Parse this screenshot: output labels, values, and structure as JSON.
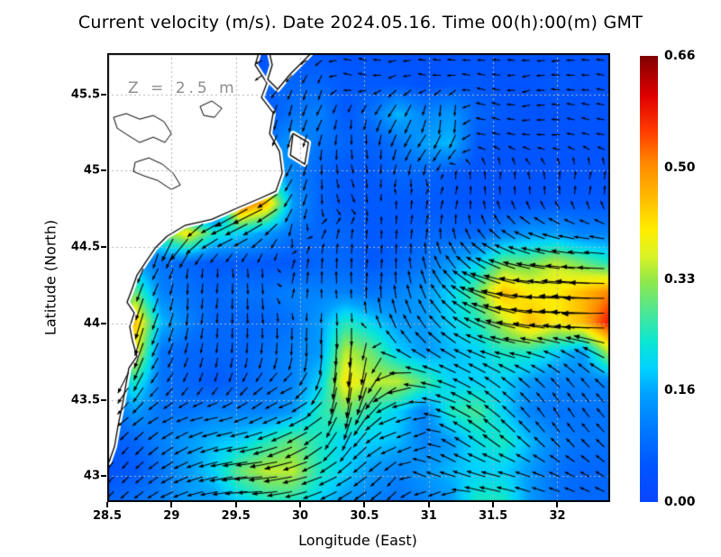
{
  "title": "Current velocity (m/s). Date 2024.05.16. Time 00(h):00(m) GMT",
  "annotation": "Z = 2.5 m",
  "axes": {
    "xlabel": "Longitude (East)",
    "ylabel": "Latitude (North)",
    "x_ticks": [
      28.5,
      29,
      29.5,
      30,
      30.5,
      31,
      31.5,
      32
    ],
    "x_tick_labels": [
      "28.5",
      "29",
      "29.5",
      "30",
      "30.5",
      "31",
      "31.5",
      "32"
    ],
    "y_ticks": [
      45.5,
      45,
      44.5,
      44,
      43.5,
      43
    ],
    "y_tick_labels": [
      "45.5",
      "45",
      "44.5",
      "44",
      "43.5",
      "43"
    ]
  },
  "colorbar": {
    "tick_labels": [
      "0.66",
      "0.50",
      "0.33",
      "0.16",
      "0.00"
    ],
    "tick_values": [
      0.66,
      0.5,
      0.33,
      0.16,
      0.0
    ],
    "vmin": 0.0,
    "vmax": 0.66
  },
  "colors": {
    "sea_arrow": "#000000",
    "land_fill": "#ffffff",
    "coastline": "#000000",
    "gridline": "#b4b4b4",
    "annotation_gray": "#8c8c8c",
    "colormap_stops": [
      [
        0.0,
        "#0a46ff"
      ],
      [
        0.08,
        "#0055ff"
      ],
      [
        0.15,
        "#0073ff"
      ],
      [
        0.24,
        "#00a0ff"
      ],
      [
        0.3,
        "#00d2ff"
      ],
      [
        0.36,
        "#0ce6d2"
      ],
      [
        0.42,
        "#46e69b"
      ],
      [
        0.5,
        "#96e846"
      ],
      [
        0.55,
        "#d8f226"
      ],
      [
        0.61,
        "#ffee00"
      ],
      [
        0.67,
        "#ffc300"
      ],
      [
        0.76,
        "#ff8800"
      ],
      [
        0.83,
        "#ff3c00"
      ],
      [
        0.91,
        "#e10000"
      ],
      [
        1.0,
        "#7f0000"
      ]
    ]
  },
  "chart_data": {
    "type": "heatmap",
    "subtype": "vector-field-map",
    "title": "Current velocity (m/s). Date 2024.05.16. Time 00(h):00(m) GMT",
    "xlabel": "Longitude (East)",
    "ylabel": "Latitude (North)",
    "depth_annotation": "Z = 2.5 m",
    "x_range": [
      28.5,
      32.41
    ],
    "y_range": [
      42.83,
      45.77
    ],
    "grid_on": true,
    "legend_position": "right-colorbar",
    "units": "m/s",
    "grid": {
      "n_cols": 20,
      "n_rows": 16,
      "lon_start": 28.5,
      "lon_end": 32.41,
      "lat_start": 45.77,
      "lat_end": 42.83
    },
    "speed_grid": [
      [
        0,
        0,
        0,
        0,
        0,
        0,
        0.05,
        0.05,
        0.06,
        0.05,
        0.05,
        0.05,
        0.04,
        0.05,
        0.05,
        0.04,
        0.05,
        0.05,
        0.05,
        0.05
      ],
      [
        0,
        0,
        0,
        0,
        0,
        0,
        0.08,
        0.08,
        0.08,
        0.06,
        0.06,
        0.06,
        0.05,
        0.06,
        0.06,
        0.05,
        0.05,
        0.06,
        0.05,
        0.05
      ],
      [
        0,
        0,
        0,
        0,
        0,
        0,
        0.06,
        0.1,
        0.12,
        0.06,
        0.1,
        0.18,
        0.12,
        0.15,
        0.08,
        0.06,
        0.05,
        0.05,
        0.05,
        0.05
      ],
      [
        0,
        0,
        0,
        0,
        0,
        0,
        0.1,
        0.15,
        0.1,
        0.08,
        0.07,
        0.1,
        0.16,
        0.18,
        0.06,
        0.05,
        0.05,
        0.05,
        0.05,
        0.05
      ],
      [
        0,
        0,
        0,
        0,
        0,
        0,
        0.2,
        0.12,
        0.08,
        0.06,
        0.06,
        0.08,
        0.08,
        0.06,
        0.05,
        0.05,
        0.05,
        0.05,
        0.05,
        0.05
      ],
      [
        0,
        0,
        0,
        0,
        0,
        0.55,
        0.45,
        0.15,
        0.08,
        0.06,
        0.06,
        0.06,
        0.06,
        0.06,
        0.05,
        0.05,
        0.05,
        0.06,
        0.06,
        0.06
      ],
      [
        0,
        0,
        0.3,
        0.4,
        0.25,
        0.2,
        0.15,
        0.1,
        0.08,
        0.08,
        0.06,
        0.06,
        0.08,
        0.08,
        0.08,
        0.12,
        0.15,
        0.15,
        0.12,
        0.12
      ],
      [
        0.1,
        0.15,
        0.1,
        0.08,
        0.06,
        0.06,
        0.06,
        0.06,
        0.08,
        0.08,
        0.06,
        0.08,
        0.1,
        0.15,
        0.2,
        0.3,
        0.3,
        0.35,
        0.3,
        0.25
      ],
      [
        0.15,
        0.3,
        0.12,
        0.1,
        0.08,
        0.1,
        0.1,
        0.12,
        0.12,
        0.12,
        0.1,
        0.12,
        0.15,
        0.2,
        0.3,
        0.45,
        0.4,
        0.4,
        0.45,
        0.5
      ],
      [
        0.15,
        0.45,
        0.18,
        0.12,
        0.08,
        0.08,
        0.08,
        0.1,
        0.15,
        0.25,
        0.2,
        0.15,
        0.15,
        0.2,
        0.25,
        0.35,
        0.45,
        0.4,
        0.45,
        0.58
      ],
      [
        0.12,
        0.4,
        0.1,
        0.08,
        0.08,
        0.08,
        0.1,
        0.12,
        0.15,
        0.35,
        0.3,
        0.2,
        0.15,
        0.18,
        0.2,
        0.25,
        0.25,
        0.2,
        0.15,
        0.35
      ],
      [
        0.1,
        0.25,
        0.1,
        0.08,
        0.06,
        0.08,
        0.1,
        0.12,
        0.2,
        0.4,
        0.35,
        0.35,
        0.28,
        0.2,
        0.2,
        0.2,
        0.15,
        0.12,
        0.12,
        0.12
      ],
      [
        0.08,
        0.15,
        0.1,
        0.1,
        0.12,
        0.12,
        0.12,
        0.15,
        0.25,
        0.3,
        0.25,
        0.2,
        0.12,
        0.25,
        0.28,
        0.2,
        0.12,
        0.1,
        0.1,
        0.1
      ],
      [
        0.06,
        0.08,
        0.12,
        0.15,
        0.18,
        0.2,
        0.25,
        0.3,
        0.25,
        0.2,
        0.2,
        0.18,
        0.12,
        0.15,
        0.22,
        0.25,
        0.18,
        0.12,
        0.1,
        0.1
      ],
      [
        0.05,
        0.06,
        0.1,
        0.15,
        0.2,
        0.3,
        0.35,
        0.35,
        0.25,
        0.2,
        0.15,
        0.12,
        0.15,
        0.18,
        0.2,
        0.2,
        0.15,
        0.1,
        0.08,
        0.08
      ],
      [
        0.08,
        0.1,
        0.12,
        0.15,
        0.15,
        0.2,
        0.25,
        0.25,
        0.2,
        0.15,
        0.12,
        0.1,
        0.12,
        0.15,
        0.25,
        0.25,
        0.15,
        0.1,
        0.08,
        0.08
      ]
    ],
    "direction_deg_grid": [
      [
        0,
        0,
        0,
        0,
        0,
        0,
        -160,
        170,
        -150,
        175,
        160,
        -170,
        175,
        165,
        -175,
        170,
        175,
        -165,
        170,
        175
      ],
      [
        0,
        0,
        0,
        0,
        0,
        0,
        -140,
        -120,
        -100,
        160,
        170,
        -150,
        165,
        -170,
        160,
        175,
        -160,
        170,
        -175,
        165
      ],
      [
        0,
        0,
        0,
        0,
        0,
        0,
        -110,
        -100,
        -120,
        -90,
        -110,
        -120,
        -100,
        -80,
        170,
        160,
        -170,
        175,
        160,
        170
      ],
      [
        0,
        0,
        0,
        0,
        0,
        0,
        -120,
        -110,
        -100,
        -90,
        -80,
        -110,
        -130,
        -120,
        175,
        165,
        170,
        -175,
        165,
        175
      ],
      [
        0,
        0,
        0,
        0,
        0,
        0,
        -130,
        -120,
        -90,
        -70,
        -90,
        -100,
        -80,
        90,
        100,
        80,
        110,
        90,
        75,
        85
      ],
      [
        0,
        0,
        0,
        0,
        0,
        -150,
        -155,
        -120,
        -90,
        -60,
        -90,
        90,
        80,
        70,
        90,
        100,
        85,
        95,
        80,
        90
      ],
      [
        0,
        0,
        -100,
        -130,
        -150,
        -160,
        -140,
        -90,
        60,
        80,
        90,
        85,
        75,
        90,
        110,
        130,
        150,
        160,
        170,
        165
      ],
      [
        -95,
        -110,
        -120,
        -100,
        -90,
        -80,
        -90,
        70,
        85,
        90,
        80,
        90,
        100,
        120,
        140,
        155,
        165,
        170,
        175,
        178
      ],
      [
        -100,
        -110,
        -110,
        -90,
        -100,
        -90,
        -85,
        80,
        90,
        95,
        85,
        95,
        110,
        130,
        150,
        165,
        172,
        178,
        175,
        180
      ],
      [
        -110,
        -105,
        -110,
        -100,
        -95,
        -90,
        -85,
        -90,
        -95,
        -85,
        100,
        110,
        120,
        135,
        150,
        160,
        170,
        175,
        178,
        182
      ],
      [
        -120,
        -110,
        -120,
        -110,
        -100,
        -95,
        -100,
        -95,
        -90,
        -95,
        -100,
        130,
        140,
        145,
        155,
        165,
        170,
        160,
        150,
        155
      ],
      [
        -140,
        -120,
        -130,
        -120,
        -110,
        -120,
        -140,
        -150,
        -120,
        -95,
        -110,
        -150,
        170,
        160,
        150,
        145,
        140,
        135,
        130,
        140
      ],
      [
        -150,
        -140,
        -150,
        -160,
        -170,
        -160,
        -150,
        -160,
        -150,
        -100,
        -130,
        -160,
        -170,
        160,
        150,
        140,
        130,
        120,
        125,
        130
      ],
      [
        -140,
        -130,
        -140,
        -150,
        -160,
        -170,
        -165,
        -155,
        -145,
        -120,
        -140,
        -160,
        -150,
        150,
        145,
        140,
        135,
        130,
        132,
        135
      ],
      [
        -130,
        -135,
        -145,
        -155,
        -165,
        -170,
        -175,
        -170,
        -160,
        -150,
        -140,
        -130,
        150,
        155,
        160,
        165,
        160,
        155,
        150,
        145
      ],
      [
        -135,
        -140,
        -150,
        -160,
        -170,
        -175,
        180,
        -170,
        -160,
        -150,
        -145,
        -140,
        -135,
        -130,
        170,
        168,
        165,
        162,
        160,
        158
      ]
    ],
    "land_polygons": [
      {
        "name": "west-coast-mainland",
        "points": [
          [
            28.5,
            45.77
          ],
          [
            29.678,
            45.77
          ],
          [
            29.65,
            45.693
          ],
          [
            29.741,
            45.575
          ],
          [
            29.699,
            45.48
          ],
          [
            29.79,
            45.38
          ],
          [
            29.762,
            45.244
          ],
          [
            29.839,
            45.126
          ],
          [
            29.86,
            44.984
          ],
          [
            29.811,
            44.866
          ],
          [
            29.685,
            44.818
          ],
          [
            29.503,
            44.753
          ],
          [
            29.313,
            44.682
          ],
          [
            29.103,
            44.641
          ],
          [
            28.963,
            44.57
          ],
          [
            28.872,
            44.493
          ],
          [
            28.802,
            44.405
          ],
          [
            28.731,
            44.316
          ],
          [
            28.689,
            44.216
          ],
          [
            28.654,
            44.139
          ],
          [
            28.71,
            44.068
          ],
          [
            28.675,
            43.979
          ],
          [
            28.696,
            43.885
          ],
          [
            28.731,
            43.784
          ],
          [
            28.668,
            43.707
          ],
          [
            28.647,
            43.607
          ],
          [
            28.619,
            43.471
          ],
          [
            28.584,
            43.329
          ],
          [
            28.556,
            43.193
          ],
          [
            28.514,
            43.093
          ],
          [
            28.5,
            43.075
          ]
        ]
      },
      {
        "name": "north-spit",
        "points": [
          [
            29.762,
            45.77
          ],
          [
            30.085,
            45.77
          ],
          [
            29.924,
            45.634
          ],
          [
            29.825,
            45.534
          ],
          [
            29.748,
            45.599
          ],
          [
            29.783,
            45.693
          ]
        ]
      },
      {
        "name": "delta-islet",
        "points": [
          [
            29.944,
            45.244
          ],
          [
            30.064,
            45.185
          ],
          [
            30.036,
            45.043
          ],
          [
            29.924,
            45.102
          ]
        ]
      }
    ],
    "lake_outlines": [
      [
        [
          28.549,
          45.35
        ],
        [
          28.647,
          45.374
        ],
        [
          28.752,
          45.338
        ],
        [
          28.858,
          45.362
        ],
        [
          28.942,
          45.321
        ],
        [
          28.998,
          45.244
        ],
        [
          28.949,
          45.185
        ],
        [
          28.858,
          45.22
        ],
        [
          28.752,
          45.185
        ],
        [
          28.661,
          45.232
        ],
        [
          28.577,
          45.279
        ]
      ],
      [
        [
          28.717,
          45.055
        ],
        [
          28.823,
          45.084
        ],
        [
          28.928,
          45.043
        ],
        [
          29.012,
          44.984
        ],
        [
          29.068,
          44.907
        ],
        [
          28.998,
          44.877
        ],
        [
          28.893,
          44.936
        ],
        [
          28.787,
          44.966
        ],
        [
          28.703,
          44.995
        ]
      ],
      [
        [
          29.222,
          45.421
        ],
        [
          29.313,
          45.457
        ],
        [
          29.391,
          45.409
        ],
        [
          29.334,
          45.35
        ],
        [
          29.25,
          45.362
        ]
      ]
    ]
  }
}
